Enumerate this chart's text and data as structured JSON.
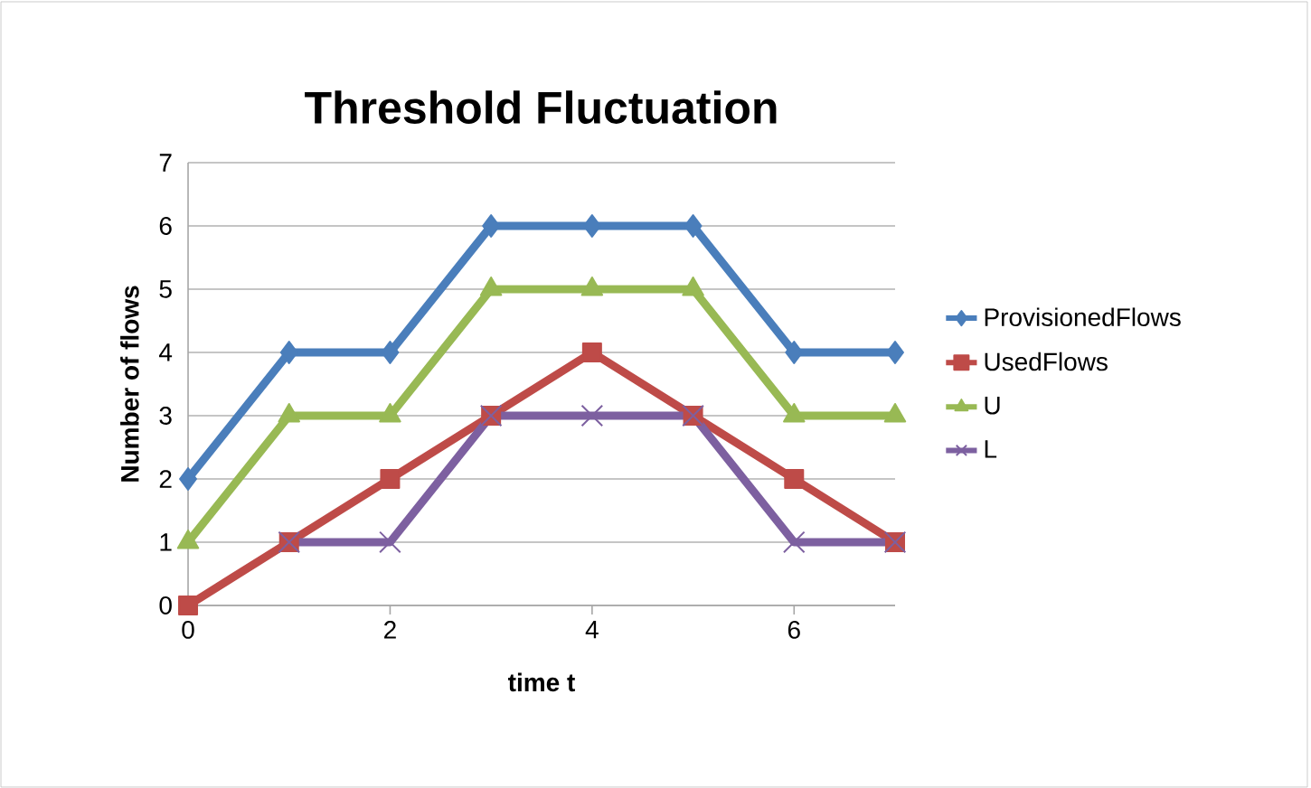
{
  "chart_data": {
    "type": "line",
    "title": "Threshold Fluctuation",
    "xlabel": "time t",
    "ylabel": "Number of flows",
    "x": [
      0,
      1,
      2,
      3,
      4,
      5,
      6,
      7
    ],
    "series": [
      {
        "name": "ProvisionedFlows",
        "color": "#4a7ebb",
        "marker": "diamond",
        "values": [
          2,
          4,
          4,
          6,
          6,
          6,
          4,
          4
        ]
      },
      {
        "name": "UsedFlows",
        "color": "#be4b48",
        "marker": "square",
        "values": [
          0,
          1,
          2,
          3,
          4,
          3,
          2,
          1
        ]
      },
      {
        "name": "U",
        "color": "#98b954",
        "marker": "triangle",
        "values": [
          1,
          3,
          3,
          5,
          5,
          5,
          3,
          3
        ]
      },
      {
        "name": "L",
        "color": "#7d60a0",
        "marker": "cross",
        "values": [
          null,
          1,
          1,
          3,
          3,
          3,
          1,
          1
        ]
      }
    ],
    "xlim": [
      0,
      7
    ],
    "xticks": [
      0,
      2,
      4,
      6
    ],
    "ylim": [
      0,
      7
    ],
    "yticks": [
      0,
      1,
      2,
      3,
      4,
      5,
      6,
      7
    ],
    "grid": "y",
    "legend": "right",
    "line_style": "solid"
  }
}
